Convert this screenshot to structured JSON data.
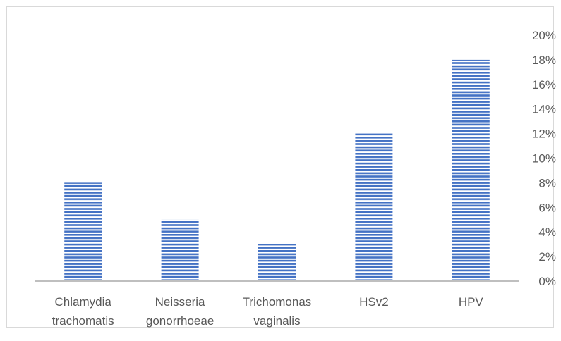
{
  "chart_data": {
    "type": "bar",
    "categories": [
      [
        "Chlamydia",
        "trachomatis"
      ],
      [
        "Neisseria",
        "gonorrhoeae"
      ],
      [
        "Trichomonas",
        "vaginalis"
      ],
      [
        "HSv2"
      ],
      [
        "HPV"
      ]
    ],
    "values": [
      8,
      5,
      3,
      12,
      18
    ],
    "value_unit": "%",
    "ylim": [
      0,
      20
    ],
    "y_ticks": [
      "0%",
      "2%",
      "4%",
      "6%",
      "8%",
      "10%",
      "12%",
      "14%",
      "16%",
      "18%",
      "20%"
    ],
    "y_axis_side": "right",
    "grid": false,
    "legend": "none",
    "bar_fill": "horizontal-stripes",
    "colors": {
      "bar_stripe": "#4472c4",
      "bar_stripe_light": "#ffffff",
      "axis": "#bfbfbf",
      "text": "#595959",
      "border": "#d9d9d9"
    }
  }
}
